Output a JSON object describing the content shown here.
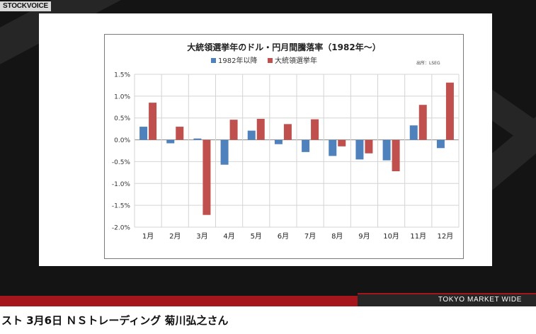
{
  "logo_text": "STOCKVOICE",
  "market_label": "TOKYO MARKET WIDE",
  "caption": "スト 3月6日 ＮＳトレーディング 菊川弘之さん",
  "colors": {
    "series1": "#4f81bd",
    "series2": "#c0504d",
    "bar_red": "#a5161c"
  },
  "chart_data": {
    "type": "bar",
    "title": "大統領選挙年のドル・円月間騰落率（1982年～）",
    "source": "出所：LSEG",
    "categories": [
      "1月",
      "2月",
      "3月",
      "4月",
      "5月",
      "6月",
      "7月",
      "8月",
      "9月",
      "10月",
      "11月",
      "12月"
    ],
    "series": [
      {
        "name": "1982年以降",
        "values": [
          0.3,
          -0.08,
          0.03,
          -0.57,
          0.21,
          -0.1,
          -0.28,
          -0.37,
          -0.45,
          -0.47,
          0.33,
          -0.19
        ]
      },
      {
        "name": "大統領選挙年",
        "values": [
          0.85,
          0.3,
          -1.72,
          0.46,
          0.48,
          0.36,
          0.47,
          -0.15,
          -0.31,
          -0.72,
          0.8,
          1.31
        ]
      }
    ],
    "ylim": [
      -2.0,
      1.5
    ],
    "yticks": [
      "1.5%",
      "1.0%",
      "0.5%",
      "0.0%",
      "-0.5%",
      "-1.0%",
      "-1.5%",
      "-2.0%"
    ],
    "grid": true,
    "legend_position": "top"
  }
}
